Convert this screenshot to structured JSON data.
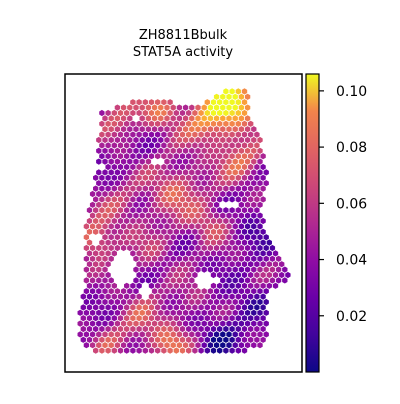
{
  "chart_data": {
    "type": "heatmap",
    "title": "ZH8811Bbulk",
    "subtitle": "STAT5A activity",
    "xlabel": "",
    "ylabel": "",
    "colormap": "plasma",
    "colorbar": {
      "min": 0.0,
      "max": 0.106,
      "ticks": [
        0.02,
        0.04,
        0.06,
        0.08,
        0.1
      ],
      "tick_labels": [
        "0.02",
        "0.04",
        "0.06",
        "0.08",
        "0.10"
      ],
      "placement": "right"
    },
    "grid": false,
    "marker": "hexagon",
    "value_range_observed": [
      0.0,
      0.106
    ],
    "high_activity_regions": [
      "upper-right",
      "upper-center",
      "left-middle"
    ],
    "low_activity_regions": [
      "lower-right",
      "bottom"
    ]
  }
}
